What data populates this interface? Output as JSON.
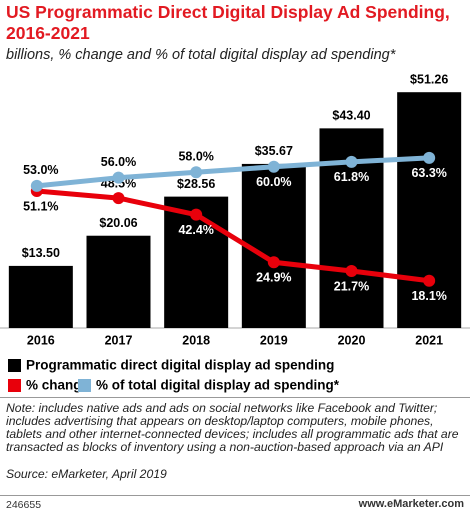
{
  "chart_data": {
    "type": "bar",
    "title": "US Programmatic Direct Digital Display Ad Spending, 2016-2021",
    "subtitle": "billions, % change and % of total digital display ad spending*",
    "categories": [
      "2016",
      "2017",
      "2018",
      "2019",
      "2020",
      "2021"
    ],
    "series": [
      {
        "name": "Programmatic direct digital display ad spending",
        "type": "bar",
        "color": "#000000",
        "values": [
          13.5,
          20.06,
          28.56,
          35.67,
          43.4,
          51.26
        ],
        "value_labels": [
          "$13.50",
          "$20.06",
          "$28.56",
          "$35.67",
          "$43.40",
          "$51.26"
        ]
      },
      {
        "name": "% change",
        "type": "line",
        "color": "#e8000b",
        "values": [
          51.1,
          48.5,
          42.4,
          24.9,
          21.7,
          18.1
        ],
        "value_labels": [
          "51.1%",
          "48.5%",
          "42.4%",
          "24.9%",
          "21.7%",
          "18.1%"
        ]
      },
      {
        "name": "% of total digital display ad spending*",
        "type": "line",
        "color": "#7fb3d6",
        "values": [
          53,
          56,
          58,
          60,
          61.8,
          63.3
        ],
        "value_labels": [
          "53.0%",
          "56.0%",
          "58.0%",
          "60.0%",
          "61.8%",
          "63.3%"
        ]
      }
    ],
    "note": "Note: includes native ads and ads on social networks like Facebook and Twitter; includes advertising that appears on desktop/laptop computers, mobile phones, tablets and other internet-connected devices; includes all programmatic ads that are transacted as blocks of inventory using a non-auction-based approach via an API",
    "source": "Source: eMarketer, April 2019"
  },
  "footer": {
    "id": "246655",
    "site": "www.eMarketer.com"
  }
}
